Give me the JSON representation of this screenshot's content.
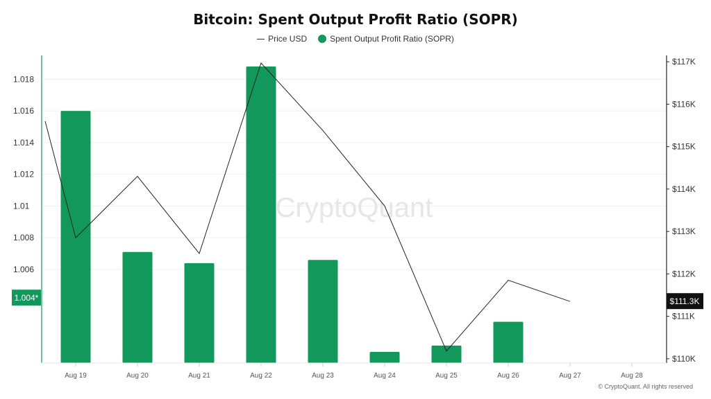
{
  "chart_data": {
    "type": "bar",
    "title": "Bitcoin: Spent Output Profit Ratio (SOPR)",
    "categories": [
      "Aug 19",
      "Aug 20",
      "Aug 21",
      "Aug 22",
      "Aug 23",
      "Aug 24",
      "Aug 25",
      "Aug 26",
      "Aug 27",
      "Aug 28"
    ],
    "series": [
      {
        "name": "Spent Output Profit Ratio (SOPR)",
        "kind": "bar",
        "axis": "left",
        "color": "#13985c",
        "values": [
          1.016,
          1.0071,
          1.0064,
          1.0188,
          1.0066,
          1.0008,
          1.0012,
          1.0027,
          null,
          null
        ]
      },
      {
        "name": "Price USD",
        "kind": "line",
        "axis": "right",
        "color": "#222222",
        "values": [
          115600,
          112850,
          114300,
          112480,
          116970,
          115380,
          113600,
          110180,
          111850,
          111350
        ]
      }
    ],
    "y_left": {
      "ylim": [
        1.0001,
        1.0195
      ],
      "ticks": [
        "1.006",
        "1.008",
        "1.01",
        "1.012",
        "1.014",
        "1.016",
        "1.018"
      ],
      "tick_values": [
        1.006,
        1.008,
        1.01,
        1.012,
        1.014,
        1.016,
        1.018
      ],
      "current_label": "1.004*",
      "current_value": 1.0042
    },
    "y_right": {
      "ylim": [
        109900,
        117150
      ],
      "ticks": [
        "$110K",
        "$111K",
        "$112K",
        "$113K",
        "$114K",
        "$115K",
        "$116K",
        "$117K"
      ],
      "tick_values": [
        110000,
        111000,
        112000,
        113000,
        114000,
        115000,
        116000,
        117000
      ],
      "current_label": "$111.3K",
      "current_value": 111350
    },
    "legend_position": "top-center",
    "grid": true,
    "watermark": "CryptoQuant"
  },
  "legend": {
    "price": "Price USD",
    "sopr": "Spent Output Profit Ratio (SOPR)"
  },
  "credit": "© CryptoQuant. All rights reserved"
}
